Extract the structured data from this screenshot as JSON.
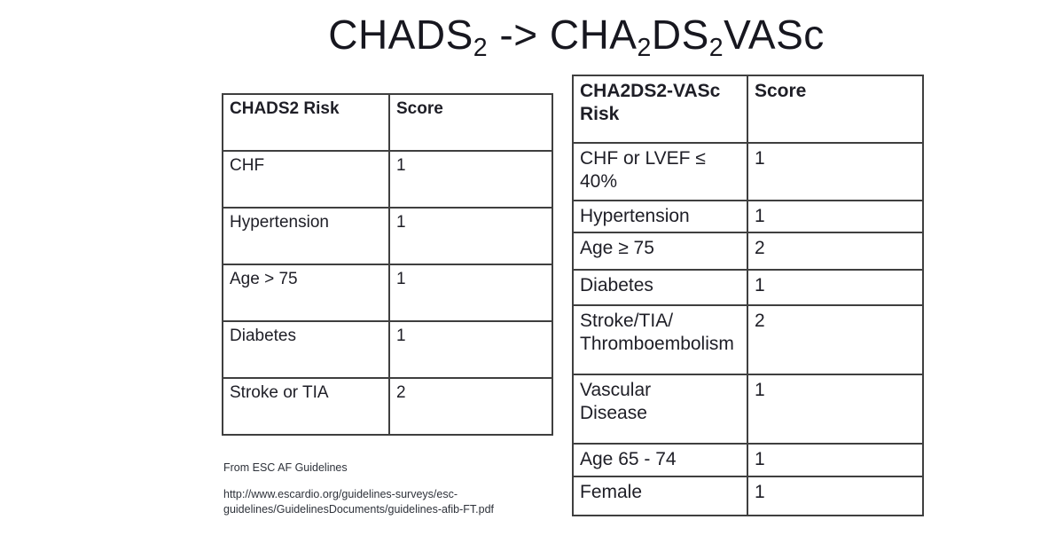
{
  "colors": {
    "background": "#ffffff",
    "text": "#1e1e26",
    "table_border": "#3f3f3f",
    "footer_text": "#2e323a"
  },
  "title": {
    "t1": "CHADS",
    "t1_sub": "2",
    "t2": " -> CHA",
    "t2_sub": "2",
    "t3": "DS",
    "t3_sub": "2",
    "t4": "VASc"
  },
  "left_table": {
    "headers": {
      "risk": "CHADS2 Risk",
      "score": "Score"
    },
    "rows": [
      {
        "risk": "CHF",
        "score": "1"
      },
      {
        "risk": "Hypertension",
        "score": "1"
      },
      {
        "risk": "Age > 75",
        "score": "1"
      },
      {
        "risk": "Diabetes",
        "score": "1"
      },
      {
        "risk": "Stroke or TIA",
        "score": "2"
      }
    ]
  },
  "right_table": {
    "headers": {
      "risk": "CHA2DS2-VASc\nRisk",
      "score": "Score"
    },
    "rows": [
      {
        "risk": "CHF or LVEF ≤\n40%",
        "score": "1"
      },
      {
        "risk": "Hypertension",
        "score": "1"
      },
      {
        "risk": "Age ≥ 75",
        "score": "2"
      },
      {
        "risk": "Diabetes",
        "score": "1"
      },
      {
        "risk": "Stroke/TIA/\nThromboembolism",
        "score": "2"
      },
      {
        "risk": "Vascular\nDisease",
        "score": "1"
      },
      {
        "risk": "Age 65 - 74",
        "score": "1"
      },
      {
        "risk": "Female",
        "score": "1"
      }
    ]
  },
  "footer": {
    "source": "From ESC AF Guidelines",
    "url": "http://www.escardio.org/guidelines-surveys/esc-\nguidelines/GuidelinesDocuments/guidelines-afib-FT.pdf"
  }
}
